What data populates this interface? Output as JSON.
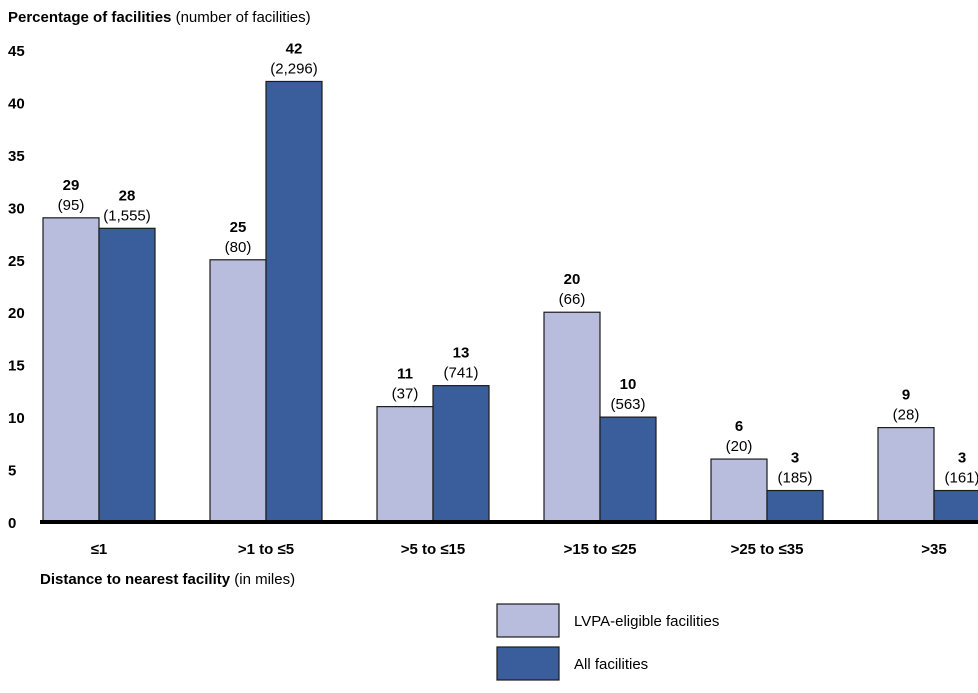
{
  "chart_data": {
    "type": "bar",
    "title": "Percentage of facilities",
    "title_suffix": "(number of facilities)",
    "xlabel": "Distance to nearest facility",
    "xlabel_suffix": "(in miles)",
    "categories": [
      "≤1",
      ">1 to ≤5",
      ">5 to ≤15",
      ">15 to ≤25",
      ">25 to ≤35",
      ">35"
    ],
    "ylim": [
      0,
      45
    ],
    "yticks": [
      "0",
      "5",
      "10",
      "15",
      "20",
      "25",
      "30",
      "35",
      "40",
      "45"
    ],
    "grid": false,
    "legend_position": "bottom-right",
    "series": [
      {
        "name": "LVPA-eligible facilities",
        "color": "#b8bcdd",
        "values": [
          29,
          25,
          11,
          20,
          6,
          9
        ],
        "count_labels": [
          "(95)",
          "(80)",
          "(37)",
          "(66)",
          "(20)",
          "(28)"
        ]
      },
      {
        "name": "All facilities",
        "color": "#3a5e9c",
        "values": [
          28,
          42,
          13,
          10,
          3,
          3
        ],
        "count_labels": [
          "(1,555)",
          "(2,296)",
          "(741)",
          "(563)",
          "(185)",
          "(161)"
        ]
      }
    ]
  }
}
